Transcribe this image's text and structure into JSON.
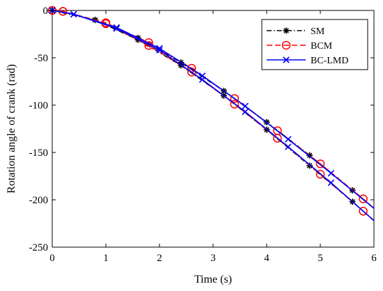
{
  "chart_data": {
    "type": "line",
    "xlabel": "Time (s)",
    "ylabel": "Rotation angle of crank (rad)",
    "xlim": [
      0,
      6
    ],
    "ylim": [
      -250,
      0
    ],
    "xticks": [
      0,
      1,
      2,
      3,
      4,
      5,
      6
    ],
    "yticks": [
      0,
      -50,
      -100,
      -150,
      -200,
      -250
    ],
    "xtick_labels": [
      "0",
      "1",
      "2",
      "3",
      "4",
      "5",
      "6"
    ],
    "ytick_labels": [
      "0",
      "-50",
      "-100",
      "-150",
      "-200",
      "-250"
    ],
    "grid": false,
    "legend_position": "top-right",
    "series": [
      {
        "name": "SM",
        "color": "#000000",
        "line_style": "dash-dot",
        "marker": "asterisk",
        "branch_a": [
          [
            0,
            0
          ],
          [
            0.8,
            -10
          ],
          [
            1.6,
            -29
          ],
          [
            2.4,
            -55
          ],
          [
            3.2,
            -85
          ],
          [
            4.0,
            -118
          ],
          [
            4.8,
            -153
          ],
          [
            5.6,
            -190
          ],
          [
            6.0,
            -209
          ]
        ],
        "branch_b": [
          [
            0,
            0
          ],
          [
            0.8,
            -10
          ],
          [
            1.6,
            -31
          ],
          [
            2.4,
            -58
          ],
          [
            3.2,
            -90
          ],
          [
            4.0,
            -126
          ],
          [
            4.8,
            -164
          ],
          [
            5.6,
            -202
          ],
          [
            6.0,
            -222
          ]
        ]
      },
      {
        "name": "BCM",
        "color": "#ff0000",
        "line_style": "dashed",
        "marker": "circle",
        "branch_a": [
          [
            0,
            0
          ],
          [
            0.2,
            -1
          ],
          [
            1.0,
            -13
          ],
          [
            1.8,
            -34
          ],
          [
            2.6,
            -61
          ],
          [
            3.4,
            -93
          ],
          [
            4.2,
            -127
          ],
          [
            5.0,
            -162
          ],
          [
            5.8,
            -199
          ],
          [
            6.0,
            -209
          ]
        ],
        "branch_b": [
          [
            0,
            0
          ],
          [
            0.2,
            -1
          ],
          [
            1.0,
            -14
          ],
          [
            1.8,
            -37
          ],
          [
            2.6,
            -65
          ],
          [
            3.4,
            -99
          ],
          [
            4.2,
            -135
          ],
          [
            5.0,
            -173
          ],
          [
            5.8,
            -212
          ],
          [
            6.0,
            -222
          ]
        ]
      },
      {
        "name": "BC-LMD",
        "color": "#0000ff",
        "line_style": "solid",
        "marker": "x",
        "branch_a": [
          [
            0,
            0
          ],
          [
            0.4,
            -4
          ],
          [
            1.2,
            -18
          ],
          [
            2.0,
            -40
          ],
          [
            2.8,
            -69
          ],
          [
            3.6,
            -101
          ],
          [
            4.4,
            -136
          ],
          [
            5.2,
            -172
          ],
          [
            6.0,
            -209
          ]
        ],
        "branch_b": [
          [
            0,
            0
          ],
          [
            0.4,
            -4
          ],
          [
            1.2,
            -19
          ],
          [
            2.0,
            -42
          ],
          [
            2.8,
            -73
          ],
          [
            3.6,
            -107
          ],
          [
            4.4,
            -144
          ],
          [
            5.2,
            -182
          ],
          [
            6.0,
            -222
          ]
        ]
      }
    ]
  }
}
